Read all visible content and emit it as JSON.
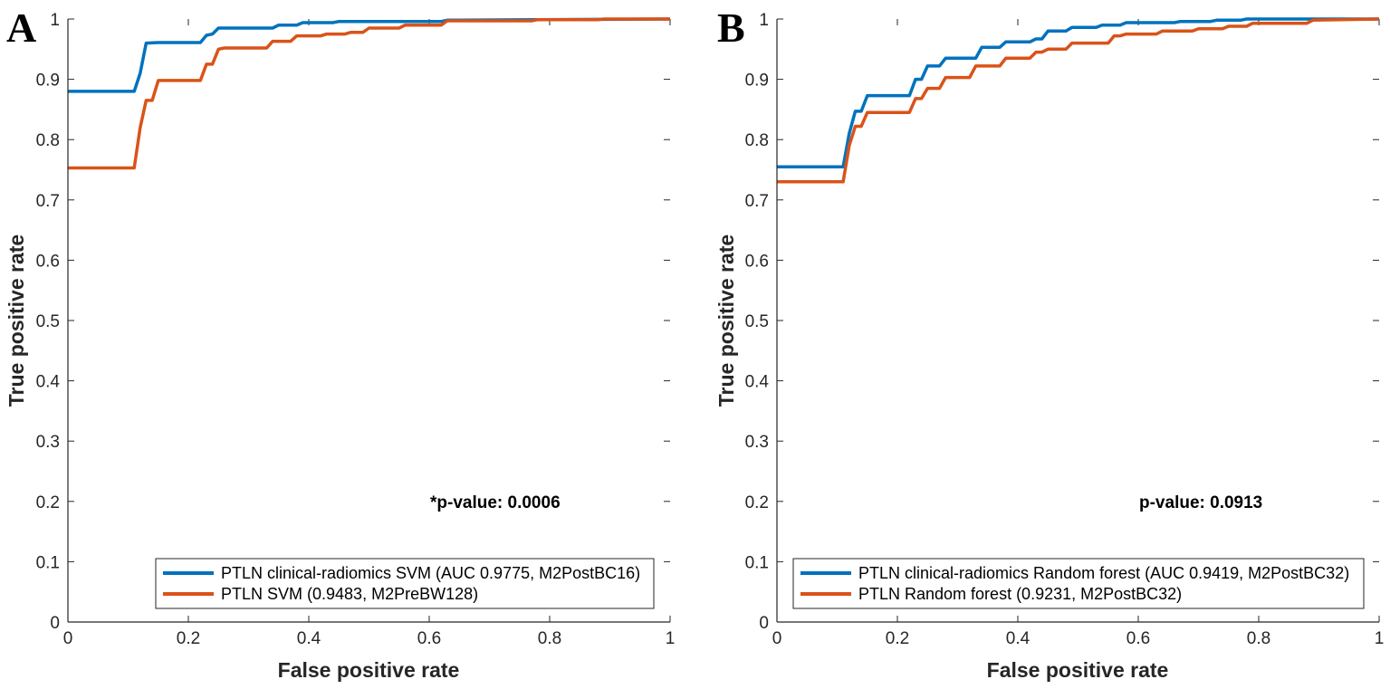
{
  "colors": {
    "series1": "#0072BD",
    "series2": "#D95319",
    "axis": "#262626"
  },
  "chart_data": [
    {
      "type": "line",
      "panel_label": "A",
      "xlabel": "False positive rate",
      "ylabel": "True positive rate",
      "xlim": [
        0,
        1
      ],
      "ylim": [
        0,
        1
      ],
      "xticks": [
        "0",
        "0.2",
        "0.4",
        "0.6",
        "0.8",
        "1"
      ],
      "yticks": [
        "0",
        "0.1",
        "0.2",
        "0.3",
        "0.4",
        "0.5",
        "0.6",
        "0.7",
        "0.8",
        "0.9",
        "1"
      ],
      "annotation": "*p-value: 0.0006",
      "legend_position": "bottom-right",
      "series": [
        {
          "name": "PTLN clinical-radiomics SVM (AUC 0.9775, M2PostBC16)",
          "color": "#0072BD",
          "x": [
            0,
            0.11,
            0.12,
            0.13,
            0.15,
            0.22,
            0.23,
            0.24,
            0.25,
            0.34,
            0.35,
            0.38,
            0.39,
            0.44,
            0.45,
            0.62,
            0.63,
            1
          ],
          "y": [
            0.88,
            0.88,
            0.91,
            0.96,
            0.961,
            0.961,
            0.973,
            0.975,
            0.985,
            0.985,
            0.99,
            0.99,
            0.994,
            0.994,
            0.996,
            0.996,
            0.998,
            1
          ]
        },
        {
          "name": "PTLN SVM (0.9483, M2PreBW128)",
          "color": "#D95319",
          "x": [
            0,
            0.11,
            0.12,
            0.13,
            0.14,
            0.15,
            0.22,
            0.23,
            0.24,
            0.25,
            0.26,
            0.33,
            0.34,
            0.37,
            0.38,
            0.42,
            0.43,
            0.46,
            0.47,
            0.49,
            0.5,
            0.55,
            0.56,
            0.62,
            0.63,
            0.77,
            0.78,
            0.88,
            0.89,
            1
          ],
          "y": [
            0.753,
            0.753,
            0.82,
            0.865,
            0.865,
            0.898,
            0.898,
            0.925,
            0.925,
            0.95,
            0.952,
            0.952,
            0.963,
            0.963,
            0.972,
            0.972,
            0.975,
            0.975,
            0.978,
            0.978,
            0.985,
            0.985,
            0.99,
            0.99,
            0.997,
            0.997,
            0.999,
            0.999,
            1,
            1
          ]
        }
      ]
    },
    {
      "type": "line",
      "panel_label": "B",
      "xlabel": "False positive rate",
      "ylabel": "True positive rate",
      "xlim": [
        0,
        1
      ],
      "ylim": [
        0,
        1
      ],
      "xticks": [
        "0",
        "0.2",
        "0.4",
        "0.6",
        "0.8",
        "1"
      ],
      "yticks": [
        "0",
        "0.1",
        "0.2",
        "0.3",
        "0.4",
        "0.5",
        "0.6",
        "0.7",
        "0.8",
        "0.9",
        "1"
      ],
      "annotation": "p-value: 0.0913",
      "legend_position": "bottom-right",
      "series": [
        {
          "name": "PTLN clinical-radiomics Random forest (AUC 0.9419, M2PostBC32)",
          "color": "#0072BD",
          "x": [
            0,
            0.11,
            0.12,
            0.13,
            0.14,
            0.15,
            0.22,
            0.23,
            0.24,
            0.25,
            0.27,
            0.28,
            0.33,
            0.34,
            0.37,
            0.38,
            0.42,
            0.43,
            0.44,
            0.45,
            0.48,
            0.49,
            0.53,
            0.54,
            0.57,
            0.58,
            0.66,
            0.67,
            0.72,
            0.73,
            0.77,
            0.78,
            1
          ],
          "y": [
            0.755,
            0.755,
            0.81,
            0.847,
            0.847,
            0.873,
            0.873,
            0.9,
            0.9,
            0.922,
            0.922,
            0.935,
            0.935,
            0.953,
            0.953,
            0.962,
            0.962,
            0.967,
            0.967,
            0.98,
            0.98,
            0.986,
            0.986,
            0.99,
            0.99,
            0.994,
            0.994,
            0.996,
            0.996,
            0.998,
            0.998,
            1,
            1
          ]
        },
        {
          "name": "PTLN Random forest (0.9231, M2PostBC32)",
          "color": "#D95319",
          "x": [
            0,
            0.11,
            0.12,
            0.13,
            0.14,
            0.15,
            0.22,
            0.23,
            0.24,
            0.25,
            0.27,
            0.28,
            0.32,
            0.33,
            0.37,
            0.38,
            0.42,
            0.43,
            0.44,
            0.45,
            0.48,
            0.49,
            0.55,
            0.56,
            0.57,
            0.58,
            0.63,
            0.64,
            0.69,
            0.7,
            0.74,
            0.75,
            0.78,
            0.79,
            0.88,
            0.89,
            1
          ],
          "y": [
            0.73,
            0.73,
            0.79,
            0.822,
            0.822,
            0.845,
            0.845,
            0.868,
            0.868,
            0.885,
            0.885,
            0.903,
            0.903,
            0.922,
            0.922,
            0.935,
            0.935,
            0.945,
            0.945,
            0.95,
            0.95,
            0.96,
            0.96,
            0.972,
            0.972,
            0.975,
            0.975,
            0.98,
            0.98,
            0.984,
            0.984,
            0.988,
            0.988,
            0.993,
            0.993,
            0.998,
            1
          ]
        }
      ]
    }
  ]
}
